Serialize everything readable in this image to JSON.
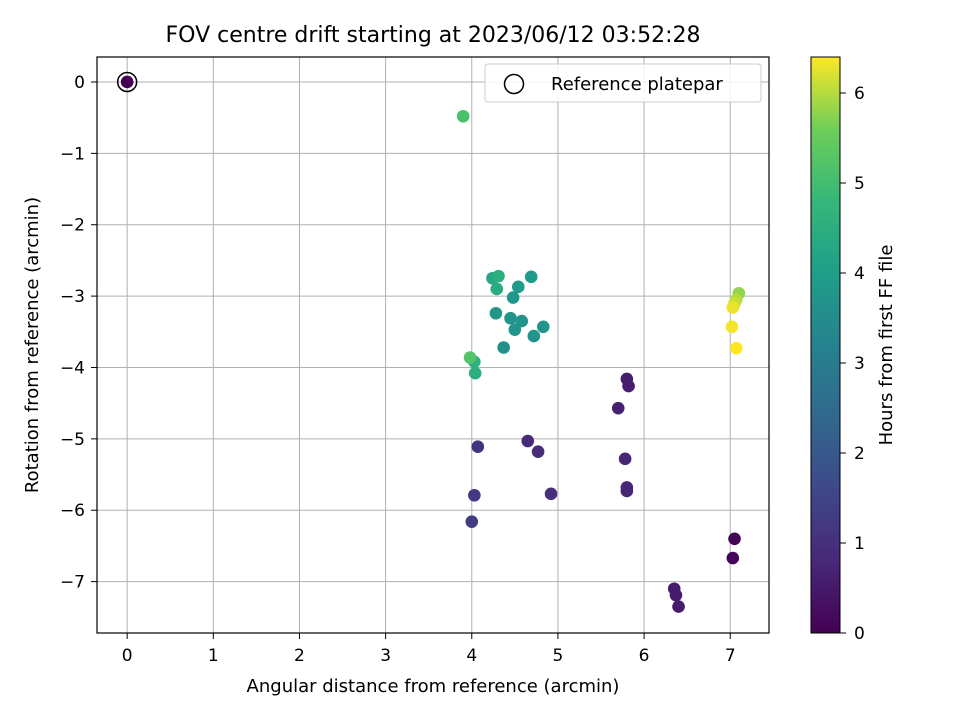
{
  "chart_data": {
    "type": "scatter",
    "title": "FOV centre drift starting at 2023/06/12 03:52:28",
    "xlabel": "Angular distance from reference (arcmin)",
    "ylabel": "Rotation from reference (arcmin)",
    "xlim": [
      -0.35,
      7.45
    ],
    "ylim": [
      -7.72,
      0.35
    ],
    "xticks": [
      0,
      1,
      2,
      3,
      4,
      5,
      6,
      7
    ],
    "yticks": [
      0,
      -1,
      -2,
      -3,
      -4,
      -5,
      -6,
      -7
    ],
    "xtick_labels": [
      "0",
      "1",
      "2",
      "3",
      "4",
      "5",
      "6",
      "7"
    ],
    "ytick_labels": [
      "0",
      "−1",
      "−2",
      "−3",
      "−4",
      "−5",
      "−6",
      "−7"
    ],
    "grid": true,
    "legend": {
      "position": "top-right",
      "label": "Reference platepar"
    },
    "colorbar": {
      "label": "Hours from first FF file",
      "colormap": "viridis",
      "range": [
        0,
        6.4
      ],
      "ticks": [
        0,
        1,
        2,
        3,
        4,
        5,
        6
      ],
      "tick_labels": [
        "0",
        "1",
        "2",
        "3",
        "4",
        "5",
        "6"
      ]
    },
    "reference_point": {
      "x": 0,
      "y": 0,
      "c": 0
    },
    "points": [
      {
        "x": 0.0,
        "y": 0.0,
        "c": 0.0
      },
      {
        "x": 7.05,
        "y": -6.4,
        "c": 0.05
      },
      {
        "x": 7.03,
        "y": -6.67,
        "c": 0.1
      },
      {
        "x": 6.35,
        "y": -7.1,
        "c": 0.55
      },
      {
        "x": 6.37,
        "y": -7.19,
        "c": 0.55
      },
      {
        "x": 6.4,
        "y": -7.35,
        "c": 0.55
      },
      {
        "x": 5.8,
        "y": -4.16,
        "c": 0.6
      },
      {
        "x": 5.82,
        "y": -4.26,
        "c": 0.6
      },
      {
        "x": 5.7,
        "y": -4.57,
        "c": 0.65
      },
      {
        "x": 5.78,
        "y": -5.28,
        "c": 0.75
      },
      {
        "x": 5.8,
        "y": -5.68,
        "c": 0.75
      },
      {
        "x": 5.8,
        "y": -5.73,
        "c": 0.75
      },
      {
        "x": 4.65,
        "y": -5.03,
        "c": 0.85
      },
      {
        "x": 4.77,
        "y": -5.18,
        "c": 0.9
      },
      {
        "x": 4.92,
        "y": -5.77,
        "c": 1.0
      },
      {
        "x": 4.07,
        "y": -5.11,
        "c": 1.1
      },
      {
        "x": 4.03,
        "y": -5.79,
        "c": 1.2
      },
      {
        "x": 4.0,
        "y": -6.16,
        "c": 1.3
      },
      {
        "x": 4.37,
        "y": -3.72,
        "c": 3.6
      },
      {
        "x": 4.5,
        "y": -3.47,
        "c": 3.7
      },
      {
        "x": 4.72,
        "y": -3.56,
        "c": 3.7
      },
      {
        "x": 4.83,
        "y": -3.43,
        "c": 3.75
      },
      {
        "x": 4.58,
        "y": -3.35,
        "c": 3.75
      },
      {
        "x": 4.45,
        "y": -3.31,
        "c": 3.75
      },
      {
        "x": 4.28,
        "y": -3.24,
        "c": 3.8
      },
      {
        "x": 4.48,
        "y": -3.02,
        "c": 3.85
      },
      {
        "x": 4.54,
        "y": -2.87,
        "c": 3.9
      },
      {
        "x": 4.69,
        "y": -2.73,
        "c": 3.95
      },
      {
        "x": 4.24,
        "y": -2.75,
        "c": 4.3
      },
      {
        "x": 4.29,
        "y": -2.9,
        "c": 4.4
      },
      {
        "x": 4.31,
        "y": -2.72,
        "c": 4.5
      },
      {
        "x": 4.04,
        "y": -4.08,
        "c": 4.5
      },
      {
        "x": 4.03,
        "y": -3.92,
        "c": 4.6
      },
      {
        "x": 3.98,
        "y": -3.86,
        "c": 5.2
      },
      {
        "x": 3.9,
        "y": -0.48,
        "c": 5.1
      },
      {
        "x": 7.1,
        "y": -2.96,
        "c": 5.8
      },
      {
        "x": 7.07,
        "y": -3.05,
        "c": 6.0
      },
      {
        "x": 7.05,
        "y": -3.1,
        "c": 6.1
      },
      {
        "x": 7.03,
        "y": -3.16,
        "c": 6.3
      },
      {
        "x": 7.02,
        "y": -3.43,
        "c": 6.35
      },
      {
        "x": 7.07,
        "y": -3.73,
        "c": 6.4
      }
    ]
  }
}
